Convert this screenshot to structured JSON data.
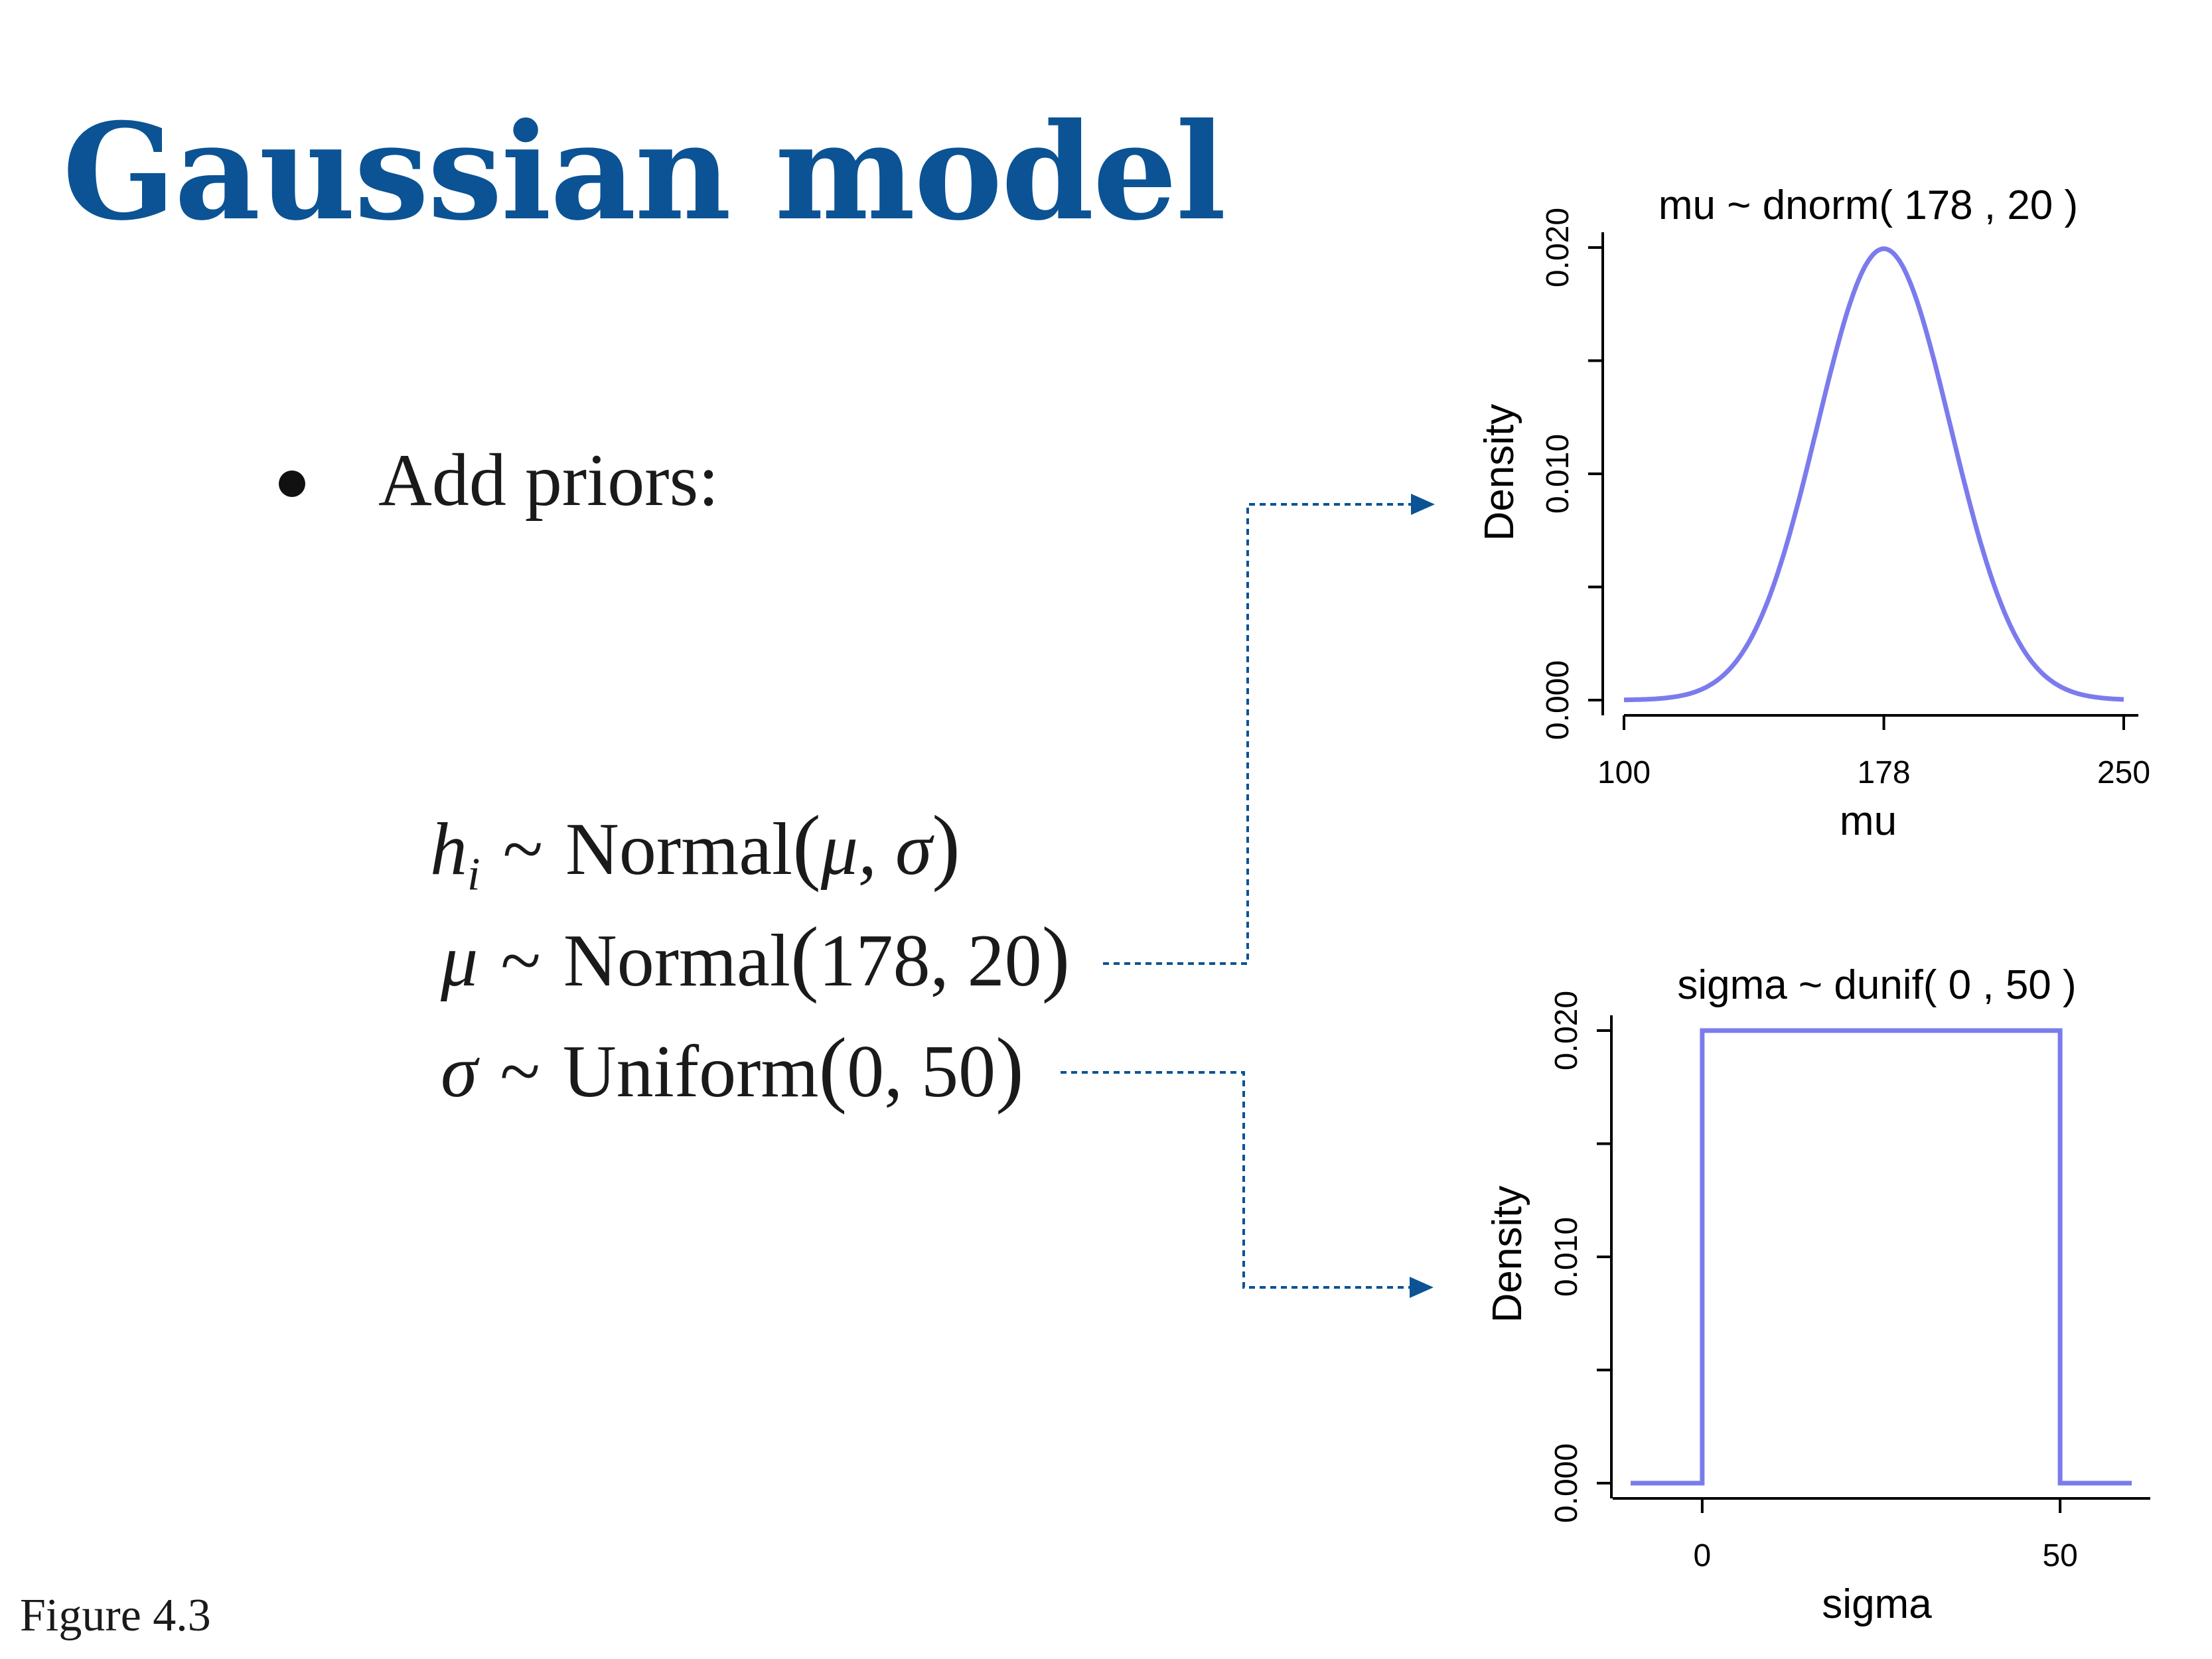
{
  "slide": {
    "title": "Gaussian model",
    "bullet": "Add priors:",
    "caption": "Figure 4.3",
    "title_color": "#0b5394",
    "connector_color": "#0b5394"
  },
  "equations": [
    {
      "lhs": "h",
      "sub": "i",
      "sim": "~",
      "dist": "Normal",
      "open": "(",
      "args_html": "μ, σ",
      "close": ")"
    },
    {
      "lhs": "μ",
      "sub": "",
      "sim": "~",
      "dist": "Normal",
      "open": "(",
      "args_html": "178, 20",
      "close": ")"
    },
    {
      "lhs": "σ",
      "sub": "",
      "sim": "~",
      "dist": "Uniform",
      "open": "(",
      "args_html": "0, 50",
      "close": ")"
    }
  ],
  "chart_data": [
    {
      "type": "line",
      "title": "mu ~ dnorm( 178 , 20 )",
      "xlabel": "mu",
      "ylabel": "Density",
      "distribution": {
        "family": "normal",
        "mean": 178,
        "sd": 20
      },
      "xlim": [
        100,
        250
      ],
      "ylim": [
        0,
        0.02
      ],
      "x_ticks": [
        100,
        178,
        250
      ],
      "x_tick_labels": [
        "100",
        "178",
        "250"
      ],
      "y_ticks": [
        0,
        0.005,
        0.01,
        0.015,
        0.02
      ],
      "y_tick_labels": [
        "0.000",
        "",
        "0.010",
        "",
        "0.020"
      ],
      "line_color": "#7b7bee",
      "grid": false
    },
    {
      "type": "line",
      "title": "sigma ~ dunif( 0 , 50 )",
      "xlabel": "sigma",
      "ylabel": "Density",
      "distribution": {
        "family": "uniform",
        "min": 0,
        "max": 50
      },
      "xlim": [
        -10,
        60
      ],
      "ylim": [
        0,
        0.02
      ],
      "x_ticks": [
        0,
        50
      ],
      "x_tick_labels": [
        "0",
        "50"
      ],
      "y_ticks": [
        0,
        0.005,
        0.01,
        0.015,
        0.02
      ],
      "y_tick_labels": [
        "0.000",
        "",
        "0.010",
        "",
        "0.020"
      ],
      "line_color": "#7b7bee",
      "grid": false
    }
  ]
}
